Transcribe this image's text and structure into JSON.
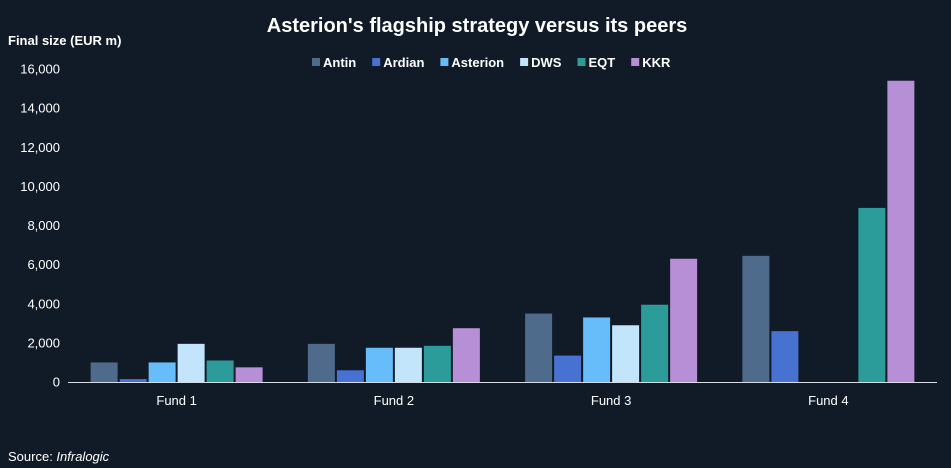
{
  "chart_data": {
    "type": "bar",
    "title": "Asterion's flagship strategy versus its peers",
    "ylabel": "Final size (EUR m)",
    "xlabel": "",
    "categories": [
      "Fund 1",
      "Fund 2",
      "Fund 3",
      "Fund 4"
    ],
    "ylim": [
      0,
      16000
    ],
    "yticks": [
      0,
      2000,
      4000,
      6000,
      8000,
      10000,
      12000,
      14000,
      16000
    ],
    "ytick_labels": [
      "0",
      "2,000",
      "4,000",
      "6,000",
      "8,000",
      "10,000",
      "12,000",
      "14,000",
      "16,000"
    ],
    "legend_position": "top-center",
    "grid": false,
    "series": [
      {
        "name": "Antin",
        "color": "#4f6b8c",
        "values": [
          1000,
          1950,
          3500,
          6450
        ]
      },
      {
        "name": "Ardian",
        "color": "#4772d1",
        "values": [
          150,
          600,
          1350,
          2600
        ]
      },
      {
        "name": "Asterion",
        "color": "#66bdfa",
        "values": [
          1000,
          1750,
          3300,
          null
        ]
      },
      {
        "name": "DWS",
        "color": "#c2e5fb",
        "values": [
          1950,
          1750,
          2900,
          null
        ]
      },
      {
        "name": "EQT",
        "color": "#2b9c9a",
        "values": [
          1100,
          1850,
          3950,
          8900
        ]
      },
      {
        "name": "KKR",
        "color": "#b78fd6",
        "values": [
          750,
          2750,
          6300,
          15400
        ]
      }
    ]
  },
  "source": {
    "prefix": "Source: ",
    "name": "Infralogic"
  }
}
